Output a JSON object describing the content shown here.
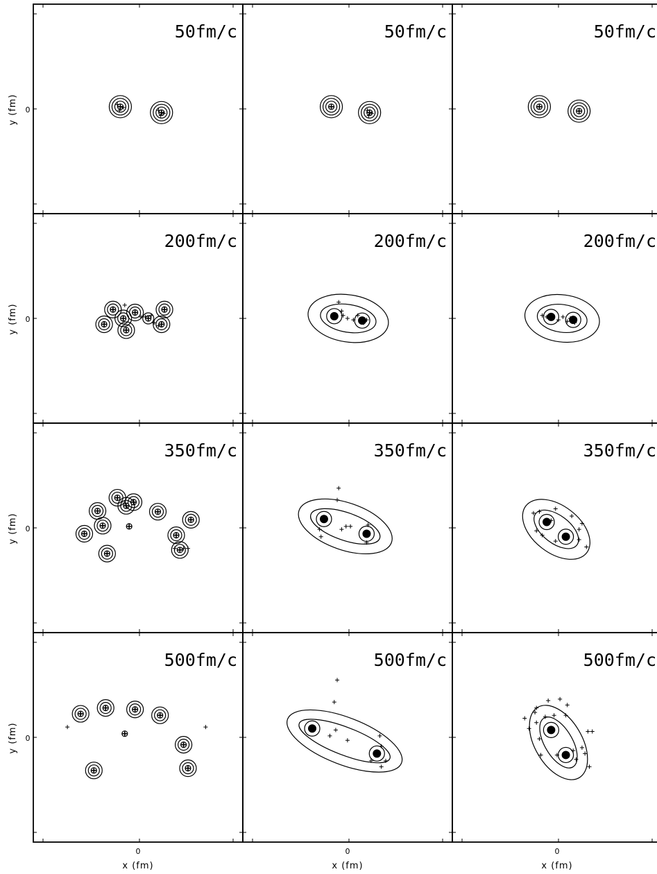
{
  "chart_data": {
    "type": "scatter",
    "layout": "grid 4 rows x 3 columns",
    "xlabel": "x (fm)",
    "ylabel": "y (fm)",
    "xtick_label": "0",
    "ytick_label": "0",
    "panels": [
      {
        "row": 0,
        "col": 0,
        "label": "50fm/c",
        "style": "ring",
        "blobs": [
          {
            "x": -26,
            "y": 3,
            "rings": 4
          },
          {
            "x": 30,
            "y": -5,
            "rings": 4
          }
        ],
        "points": [
          [
            -30,
            6
          ],
          [
            -22,
            2
          ],
          [
            -27,
            -2
          ],
          [
            26,
            -2
          ],
          [
            33,
            -6
          ],
          [
            29,
            -9
          ]
        ]
      },
      {
        "row": 0,
        "col": 1,
        "label": "50fm/c",
        "style": "ring",
        "blobs": [
          {
            "x": -24,
            "y": 3,
            "rings": 4
          },
          {
            "x": 28,
            "y": -5,
            "rings": 4
          }
        ],
        "points": [
          [
            25,
            -2
          ],
          [
            31,
            -6
          ],
          [
            27,
            -9
          ]
        ]
      },
      {
        "row": 0,
        "col": 2,
        "label": "50fm/c",
        "style": "ring",
        "blobs": [
          {
            "x": -26,
            "y": 3,
            "rings": 4
          },
          {
            "x": 28,
            "y": -3,
            "rings": 4
          }
        ],
        "points": []
      },
      {
        "row": 1,
        "col": 0,
        "label": "200fm/c",
        "style": "ring",
        "blobs": [
          {
            "x": -36,
            "y": 12,
            "rings": 3
          },
          {
            "x": -22,
            "y": 0,
            "rings": 3
          },
          {
            "x": -6,
            "y": 8,
            "rings": 3
          },
          {
            "x": -18,
            "y": -16,
            "rings": 3
          },
          {
            "x": -48,
            "y": -8,
            "rings": 3
          },
          {
            "x": 30,
            "y": -8,
            "rings": 3
          },
          {
            "x": 34,
            "y": 12,
            "rings": 3
          },
          {
            "x": 12,
            "y": 0,
            "rings": 2
          }
        ],
        "points": [
          [
            -20,
            18
          ],
          [
            2,
            2
          ],
          [
            8,
            2
          ],
          [
            16,
            4
          ],
          [
            20,
            -6
          ],
          [
            26,
            -10
          ]
        ]
      },
      {
        "row": 1,
        "col": 1,
        "label": "200fm/c",
        "style": "smooth",
        "blobs": [
          {
            "x": -20,
            "y": 3,
            "rings": 2
          },
          {
            "x": 18,
            "y": -3,
            "rings": 2
          }
        ],
        "points": [
          [
            -14,
            22
          ],
          [
            -10,
            10
          ],
          [
            -8,
            4
          ],
          [
            -2,
            0
          ],
          [
            6,
            -2
          ],
          [
            12,
            4
          ],
          [
            20,
            -6
          ],
          [
            24,
            -2
          ]
        ]
      },
      {
        "row": 1,
        "col": 2,
        "label": "200fm/c",
        "style": "smooth",
        "blobs": [
          {
            "x": -10,
            "y": 2,
            "rings": 2
          },
          {
            "x": 20,
            "y": -2,
            "rings": 2
          }
        ],
        "points": [
          [
            -22,
            4
          ],
          [
            -16,
            2
          ],
          [
            -8,
            0
          ],
          [
            0,
            -2
          ],
          [
            6,
            2
          ],
          [
            12,
            -4
          ],
          [
            16,
            0
          ],
          [
            22,
            -6
          ]
        ]
      },
      {
        "row": 2,
        "col": 0,
        "label": "350fm/c",
        "style": "ring",
        "blobs": [
          {
            "x": -75,
            "y": -8,
            "rings": 3
          },
          {
            "x": -57,
            "y": 23,
            "rings": 3
          },
          {
            "x": -50,
            "y": 3,
            "rings": 3
          },
          {
            "x": -30,
            "y": 41,
            "rings": 3
          },
          {
            "x": -14,
            "y": 2,
            "rings": 1
          },
          {
            "x": -18,
            "y": 30,
            "rings": 3
          },
          {
            "x": -44,
            "y": -35,
            "rings": 3
          },
          {
            "x": 25,
            "y": 22,
            "rings": 3
          },
          {
            "x": 50,
            "y": -10,
            "rings": 3
          },
          {
            "x": 55,
            "y": -30,
            "rings": 3
          },
          {
            "x": 70,
            "y": 11,
            "rings": 3
          },
          {
            "x": -8,
            "y": 35,
            "rings": 3
          }
        ],
        "points": [
          [
            60,
            -28
          ],
          [
            66,
            -28
          ],
          [
            48,
            -28
          ]
        ]
      },
      {
        "row": 2,
        "col": 1,
        "label": "350fm/c",
        "style": "smooth",
        "blobs": [
          {
            "x": -34,
            "y": 12,
            "rings": 2
          },
          {
            "x": 24,
            "y": -8,
            "rings": 2
          }
        ],
        "points": [
          [
            -14,
            54
          ],
          [
            -16,
            38
          ],
          [
            -10,
            -2
          ],
          [
            -4,
            2
          ],
          [
            2,
            2
          ],
          [
            -40,
            -2
          ],
          [
            -38,
            -12
          ],
          [
            26,
            4
          ],
          [
            24,
            -20
          ]
        ]
      },
      {
        "row": 2,
        "col": 2,
        "label": "350fm/c",
        "style": "smooth",
        "blobs": [
          {
            "x": -16,
            "y": 8,
            "rings": 2
          },
          {
            "x": 10,
            "y": -12,
            "rings": 2
          }
        ],
        "points": [
          [
            -34,
            20
          ],
          [
            -26,
            22
          ],
          [
            -30,
            -4
          ],
          [
            -22,
            -10
          ],
          [
            -10,
            10
          ],
          [
            -4,
            -18
          ],
          [
            18,
            16
          ],
          [
            28,
            -2
          ],
          [
            28,
            -16
          ],
          [
            38,
            -26
          ],
          [
            32,
            6
          ],
          [
            -4,
            26
          ]
        ]
      },
      {
        "row": 3,
        "col": 0,
        "label": "500fm/c",
        "style": "ring",
        "blobs": [
          {
            "x": -80,
            "y": 32,
            "rings": 3
          },
          {
            "x": -46,
            "y": 40,
            "rings": 3
          },
          {
            "x": -20,
            "y": 5,
            "rings": 1
          },
          {
            "x": -6,
            "y": 38,
            "rings": 3
          },
          {
            "x": 28,
            "y": 30,
            "rings": 3
          },
          {
            "x": 60,
            "y": -10,
            "rings": 3
          },
          {
            "x": 66,
            "y": -42,
            "rings": 3
          },
          {
            "x": -62,
            "y": -45,
            "rings": 3
          }
        ],
        "points": [
          [
            -98,
            14
          ],
          [
            90,
            14
          ]
        ]
      },
      {
        "row": 3,
        "col": 1,
        "label": "500fm/c",
        "style": "smooth",
        "blobs": [
          {
            "x": -50,
            "y": 12,
            "rings": 2
          },
          {
            "x": 38,
            "y": -22,
            "rings": 2
          }
        ],
        "points": [
          [
            -16,
            78
          ],
          [
            -20,
            48
          ],
          [
            -26,
            2
          ],
          [
            -18,
            10
          ],
          [
            -2,
            -4
          ],
          [
            42,
            2
          ],
          [
            44,
            -40
          ],
          [
            50,
            -32
          ],
          [
            30,
            -32
          ],
          [
            44,
            -12
          ]
        ]
      },
      {
        "row": 3,
        "col": 2,
        "label": "500fm/c",
        "style": "smooth",
        "blobs": [
          {
            "x": -10,
            "y": 10,
            "rings": 2
          },
          {
            "x": 10,
            "y": -24,
            "rings": 2
          }
        ],
        "points": [
          [
            -30,
            40
          ],
          [
            -32,
            34
          ],
          [
            -46,
            26
          ],
          [
            -30,
            20
          ],
          [
            -14,
            50
          ],
          [
            -18,
            28
          ],
          [
            -6,
            30
          ],
          [
            2,
            52
          ],
          [
            12,
            44
          ],
          [
            10,
            30
          ],
          [
            32,
            -14
          ],
          [
            40,
            8
          ],
          [
            46,
            8
          ],
          [
            36,
            -22
          ],
          [
            42,
            -40
          ],
          [
            -26,
            -2
          ],
          [
            -24,
            -24
          ],
          [
            -2,
            -24
          ],
          [
            24,
            -30
          ],
          [
            20,
            -18
          ],
          [
            -40,
            12
          ]
        ]
      }
    ]
  }
}
